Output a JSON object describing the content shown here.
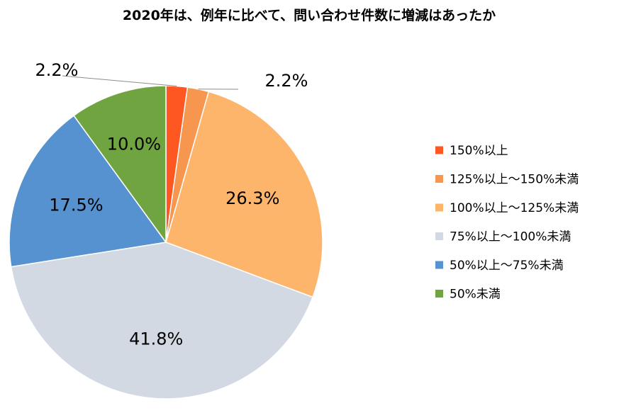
{
  "chart_data": {
    "type": "pie",
    "title": "2020年は、例年に比べて、問い合わせ件数に増減はあったか",
    "categories": [
      "150%以上",
      "125%以上～150%未満",
      "100%以上～125%未満",
      "75%以上～100%未満",
      "50%以上～75%未満",
      "50%未満"
    ],
    "values": [
      2.2,
      2.2,
      26.3,
      41.8,
      17.5,
      10.0
    ],
    "labels": [
      "2.2%",
      "2.2%",
      "26.3%",
      "41.8%",
      "17.5%",
      "10.0%"
    ],
    "colors": [
      "#FF5722",
      "#F7964F",
      "#FCB56B",
      "#D3D9E2",
      "#5592CF",
      "#70A441"
    ],
    "legend_position": "right",
    "start_angle": "top",
    "direction": "clockwise"
  }
}
